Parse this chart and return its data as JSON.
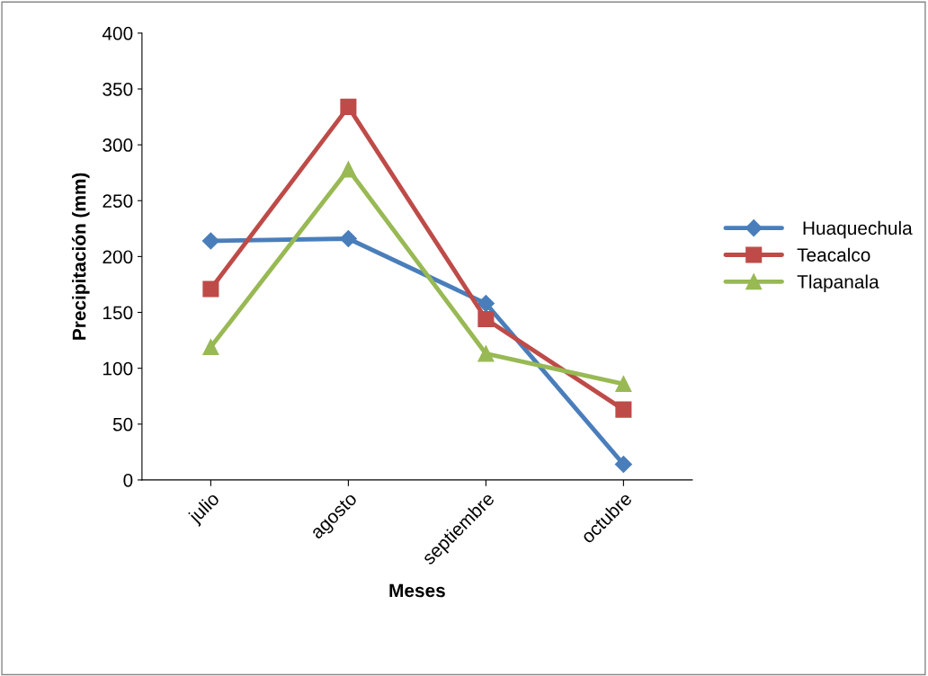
{
  "chart_data": {
    "type": "line",
    "xlabel": "Meses",
    "ylabel": "Precipitación (mm)",
    "categories": [
      "julio",
      "agosto",
      "septiembre",
      "octubre"
    ],
    "series": [
      {
        "name": " Huaquechula",
        "color": "#4a7ebb",
        "marker": "diamond",
        "values": [
          214,
          216,
          158,
          14
        ]
      },
      {
        "name": "Teacalco",
        "color": "#be4b48",
        "marker": "square",
        "values": [
          171,
          334,
          144,
          63
        ]
      },
      {
        "name": "Tlapanala",
        "color": "#98b954",
        "marker": "triangle",
        "values": [
          119,
          278,
          113,
          86
        ]
      }
    ],
    "ylim": [
      0,
      400
    ],
    "yticks": [
      0,
      50,
      100,
      150,
      200,
      250,
      300,
      350,
      400
    ],
    "grid": false,
    "legend": "right",
    "line_style": "solid"
  }
}
